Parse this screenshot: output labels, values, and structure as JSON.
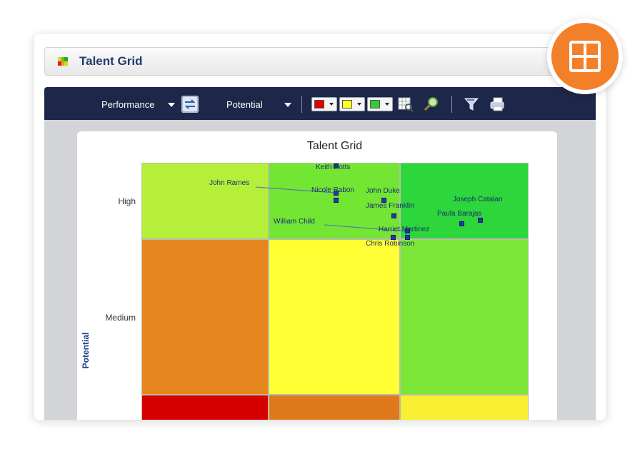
{
  "window": {
    "title": "Talent Grid",
    "icon": "talent-grid-icon"
  },
  "toolbar": {
    "x_axis_label": "Performance",
    "y_axis_label": "Potential",
    "color_swatches": [
      "#dd0000",
      "#ffff22",
      "#33cc33"
    ],
    "icons": [
      "swap-axes-icon",
      "grid-zoom-icon",
      "search-icon",
      "filter-icon",
      "print-icon"
    ]
  },
  "chart": {
    "title": "Talent Grid",
    "y_axis_title": "Potential",
    "y_ticks": [
      "High",
      "Medium"
    ],
    "cell_colors": {
      "high": [
        "#b5ef3a",
        "#73e533",
        "#2dd63a"
      ],
      "medium": [
        "#e5861f",
        "#ffff33",
        "#7be636"
      ],
      "low": [
        "#d60000",
        "#e0781c",
        "#f8f030"
      ]
    }
  },
  "employees": [
    {
      "name": "Keith Potts"
    },
    {
      "name": "John Rames"
    },
    {
      "name": "Nicole Rabon"
    },
    {
      "name": "John Duke"
    },
    {
      "name": "James Franklin"
    },
    {
      "name": "Joseph Catalan"
    },
    {
      "name": "Paula Barajas"
    },
    {
      "name": "William Child"
    },
    {
      "name": "Harriet Martinez"
    },
    {
      "name": "Chris Robinson"
    }
  ],
  "badge": {
    "icon": "grid-layout-icon",
    "color": "#f47f29"
  }
}
